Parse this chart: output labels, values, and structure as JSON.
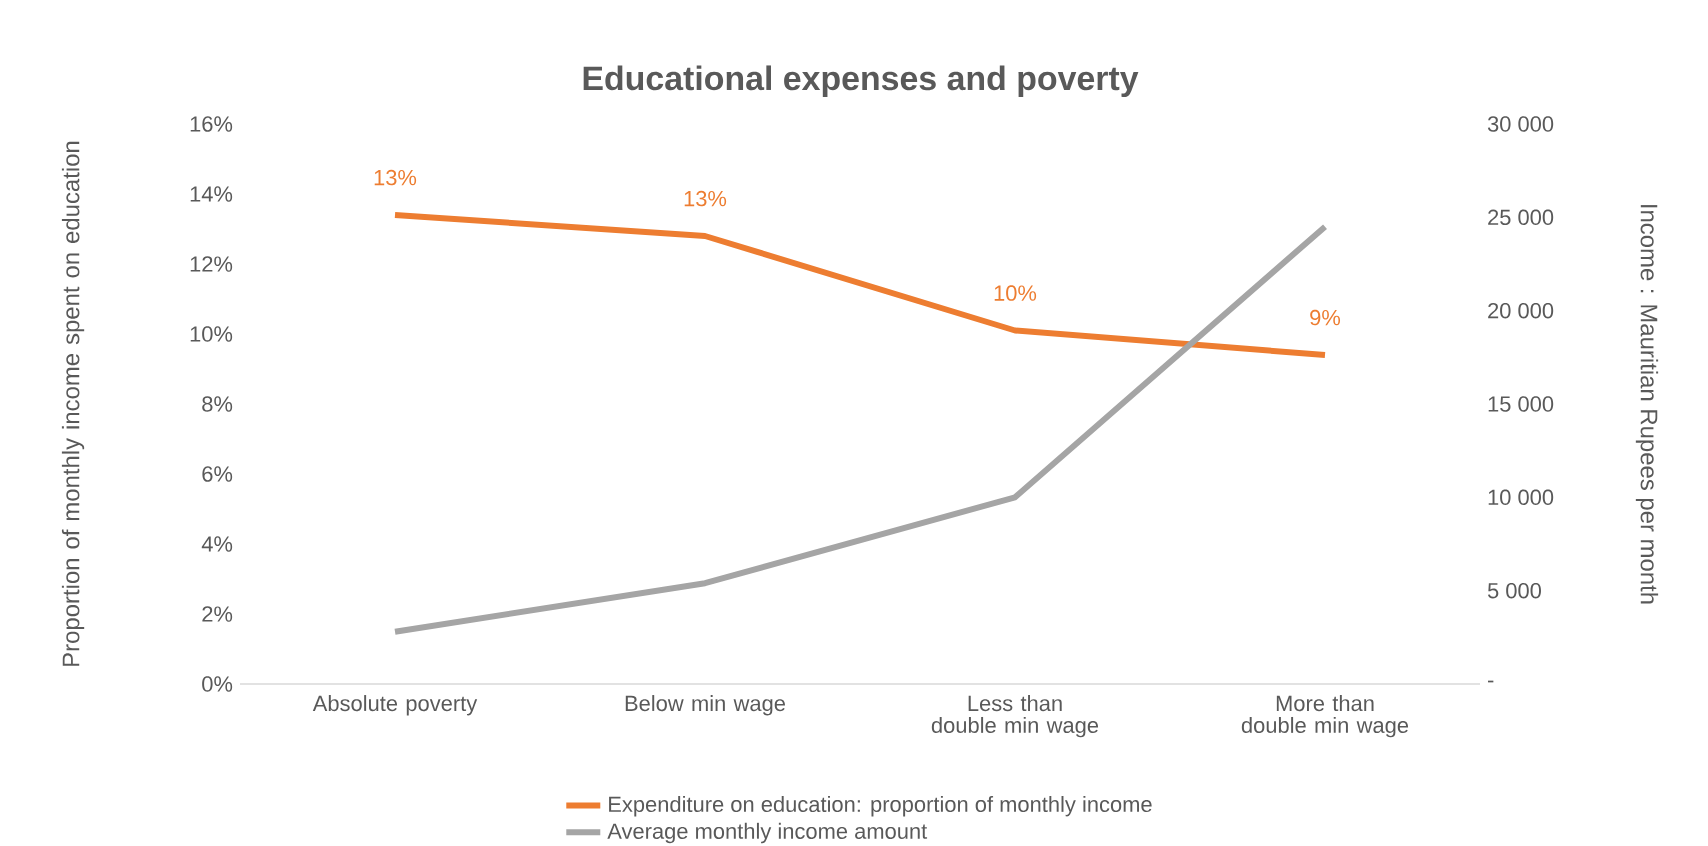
{
  "chart_data": {
    "type": "line",
    "title": "Educational expenses and poverty",
    "categories": [
      "Absolute poverty",
      "Below min wage",
      "Less than double min wage",
      "More than double min wage"
    ],
    "series": [
      {
        "name": "Expenditure on education: proportion of monthly income",
        "color": "#ed7d31",
        "values": [
          13.4,
          12.8,
          10.1,
          9.4
        ],
        "value_labels": [
          "13%",
          "13%",
          "10%",
          "9%"
        ]
      },
      {
        "name": "Average monthly income amount",
        "color": "#a5a5a5",
        "axis": "y2",
        "values": [
          2800,
          5400,
          10000,
          24500
        ]
      }
    ],
    "ylabel": "Proportion of monthly income spent on education",
    "y2label": "Income : Mauritian Rupees per month",
    "ylim": [
      0,
      16
    ],
    "yticks": [
      {
        "value": 0,
        "label": "0%"
      },
      {
        "value": 2,
        "label": "2%"
      },
      {
        "value": 4,
        "label": "4%"
      },
      {
        "value": 6,
        "label": "6%"
      },
      {
        "value": 8,
        "label": "8%"
      },
      {
        "value": 10,
        "label": "10%"
      },
      {
        "value": 12,
        "label": "12%"
      },
      {
        "value": 14,
        "label": "14%"
      },
      {
        "value": 16,
        "label": "16%"
      }
    ],
    "y2lim": [
      0,
      30000
    ],
    "y2ticks": [
      {
        "value": 0,
        "label": "-"
      },
      {
        "value": 5000,
        "label": "5 000"
      },
      {
        "value": 10000,
        "label": "10 000"
      },
      {
        "value": 15000,
        "label": "15 000"
      },
      {
        "value": 20000,
        "label": "20 000"
      },
      {
        "value": 25000,
        "label": "25 000"
      },
      {
        "value": 30000,
        "label": "30 000"
      }
    ],
    "legend": "bottom",
    "grid": false,
    "marker": "none",
    "line_style": "solid"
  }
}
